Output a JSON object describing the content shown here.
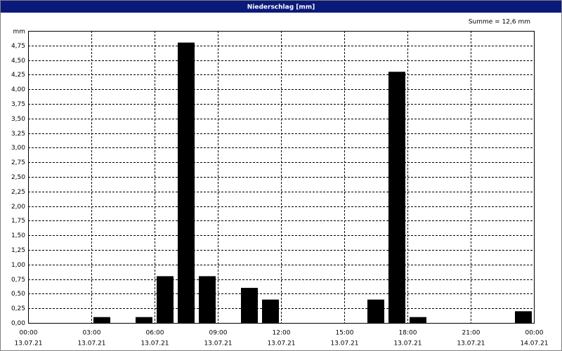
{
  "chart_data": {
    "type": "bar",
    "title": "Niederschlag [mm]",
    "annotation": "Summe = 12,6 mm",
    "y_unit": "mm",
    "x": [
      3,
      5,
      6,
      7,
      8,
      10,
      11,
      16,
      17,
      18,
      23
    ],
    "values": [
      0.1,
      0.1,
      0.8,
      4.8,
      0.8,
      0.6,
      0.4,
      0.4,
      4.3,
      0.1,
      0.2
    ],
    "color": "#000000",
    "xlim": [
      0,
      24
    ],
    "xticks": [
      {
        "value": 0,
        "label": "00:00"
      },
      {
        "value": 3,
        "label": "03:00"
      },
      {
        "value": 6,
        "label": "06:00"
      },
      {
        "value": 9,
        "label": "09:00"
      },
      {
        "value": 12,
        "label": "12:00"
      },
      {
        "value": 15,
        "label": "15:00"
      },
      {
        "value": 18,
        "label": "18:00"
      },
      {
        "value": 21,
        "label": "21:00"
      },
      {
        "value": 24,
        "label": "00:00"
      }
    ],
    "xtick_dates": [
      "13.07.21",
      "13.07.21",
      "13.07.21",
      "13.07.21",
      "13.07.21",
      "13.07.21",
      "13.07.21",
      "13.07.21",
      "14.07.21"
    ],
    "ylim": [
      0,
      5
    ],
    "yticks": [
      {
        "value": 0,
        "label": "0,00"
      },
      {
        "value": 0.25,
        "label": "0,25"
      },
      {
        "value": 0.5,
        "label": "0,50"
      },
      {
        "value": 0.75,
        "label": "0,75"
      },
      {
        "value": 1,
        "label": "1,00"
      },
      {
        "value": 1.25,
        "label": "1,25"
      },
      {
        "value": 1.5,
        "label": "1,50"
      },
      {
        "value": 1.75,
        "label": "1,75"
      },
      {
        "value": 2,
        "label": "2,00"
      },
      {
        "value": 2.25,
        "label": "2,25"
      },
      {
        "value": 2.5,
        "label": "2,50"
      },
      {
        "value": 2.75,
        "label": "2,75"
      },
      {
        "value": 3,
        "label": "3,00"
      },
      {
        "value": 3.25,
        "label": "3,25"
      },
      {
        "value": 3.5,
        "label": "3,50"
      },
      {
        "value": 3.75,
        "label": "3,75"
      },
      {
        "value": 4,
        "label": "4,00"
      },
      {
        "value": 4.25,
        "label": "4,25"
      },
      {
        "value": 4.5,
        "label": "4,50"
      },
      {
        "value": 4.75,
        "label": "4,75"
      }
    ],
    "grid": true
  }
}
